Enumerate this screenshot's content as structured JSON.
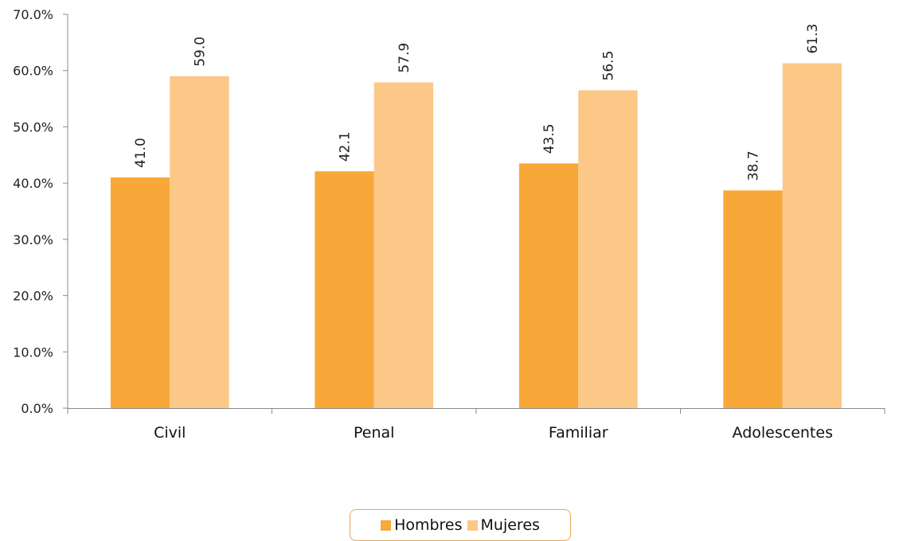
{
  "chart_data": {
    "type": "bar",
    "categories": [
      "Civil",
      "Penal",
      "Familiar",
      "Adolescentes"
    ],
    "series": [
      {
        "name": "Hombres",
        "values": [
          41.0,
          42.1,
          43.5,
          38.7
        ],
        "color": "#f8a838"
      },
      {
        "name": "Mujeres",
        "values": [
          59.0,
          57.9,
          56.5,
          61.3
        ],
        "color": "#fbc887"
      }
    ],
    "ylim": [
      0,
      70
    ],
    "yticks": [
      "0.0%",
      "10.0%",
      "20.0%",
      "30.0%",
      "40.0%",
      "50.0%",
      "60.0%",
      "70.0%"
    ],
    "data_labels": [
      [
        "41.0",
        "42.1",
        "43.5",
        "38.7"
      ],
      [
        "59.0",
        "57.9",
        "56.5",
        "61.3"
      ]
    ],
    "legend_position": "bottom",
    "grid": false
  }
}
